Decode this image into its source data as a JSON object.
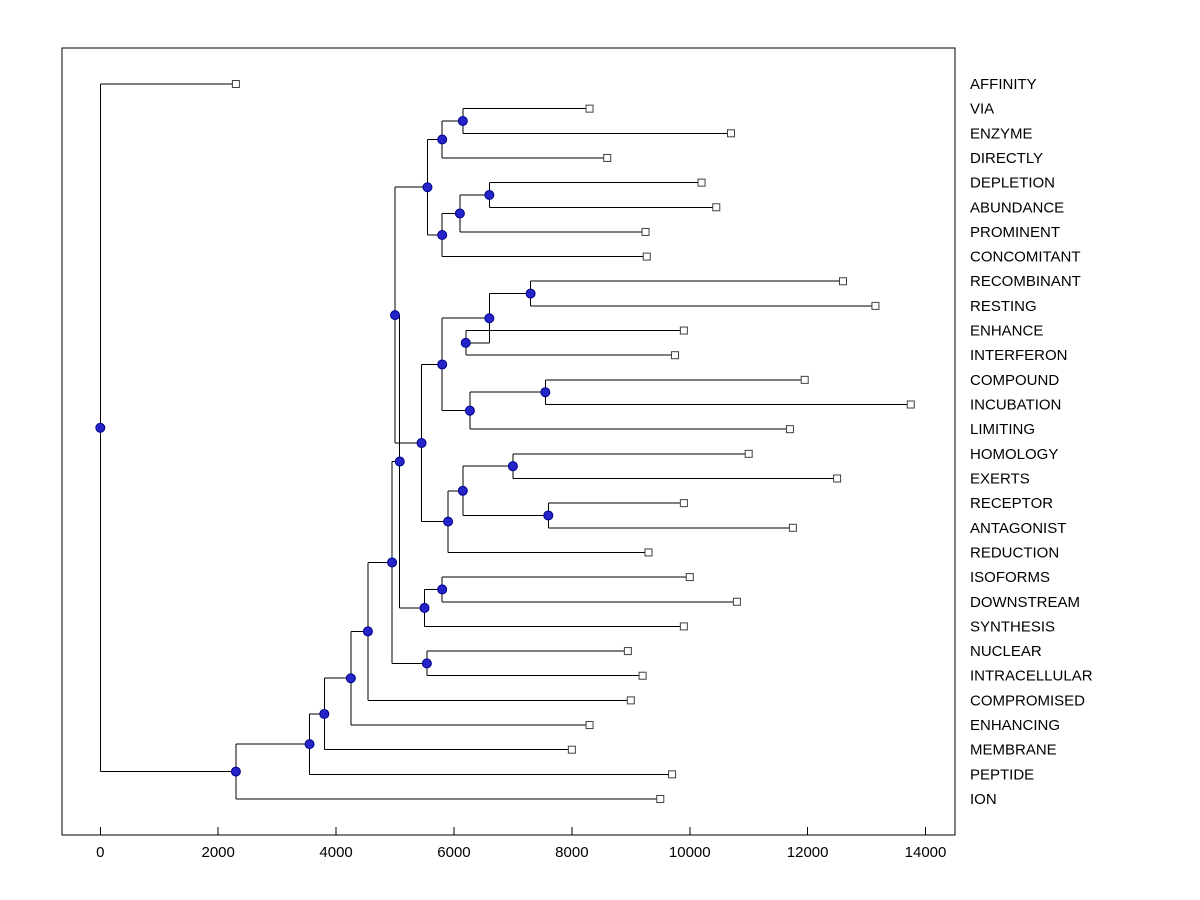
{
  "figure": {
    "background": "#ffffff"
  },
  "colors": {
    "line": "#000000",
    "leaf_marker_fill": "#ffffff",
    "leaf_marker_stroke": "#404040",
    "node_fill": "#2424c8",
    "node_stroke": "#00008b",
    "text": "#000000"
  },
  "chart_data": {
    "type": "dendrogram",
    "orientation": "left-to-right",
    "title": "",
    "xlabel": "",
    "ylabel": "",
    "grid": false,
    "xlim": [
      -650,
      14500
    ],
    "x_ticks": [
      0,
      2000,
      4000,
      6000,
      8000,
      10000,
      12000,
      14000
    ],
    "marker_styles": {
      "leaf": "open-square",
      "internal": "filled-circle"
    },
    "leaves": [
      {
        "label": "AFFINITY",
        "x": 2300
      },
      {
        "label": "VIA",
        "x": 8300
      },
      {
        "label": "ENZYME",
        "x": 10700
      },
      {
        "label": "DIRECTLY",
        "x": 8600
      },
      {
        "label": "DEPLETION",
        "x": 10200
      },
      {
        "label": "ABUNDANCE",
        "x": 10450
      },
      {
        "label": "PROMINENT",
        "x": 9250
      },
      {
        "label": "CONCOMITANT",
        "x": 9270
      },
      {
        "label": "RECOMBINANT",
        "x": 12600
      },
      {
        "label": "RESTING",
        "x": 13150
      },
      {
        "label": "ENHANCE",
        "x": 9900
      },
      {
        "label": "INTERFERON",
        "x": 9750
      },
      {
        "label": "COMPOUND",
        "x": 11950
      },
      {
        "label": "INCUBATION",
        "x": 13750
      },
      {
        "label": "LIMITING",
        "x": 11700
      },
      {
        "label": "HOMOLOGY",
        "x": 11000
      },
      {
        "label": "EXERTS",
        "x": 12500
      },
      {
        "label": "RECEPTOR",
        "x": 9900
      },
      {
        "label": "ANTAGONIST",
        "x": 11750
      },
      {
        "label": "REDUCTION",
        "x": 9300
      },
      {
        "label": "ISOFORMS",
        "x": 10000
      },
      {
        "label": "DOWNSTREAM",
        "x": 10800
      },
      {
        "label": "SYNTHESIS",
        "x": 9900
      },
      {
        "label": "NUCLEAR",
        "x": 8950
      },
      {
        "label": "INTRACELLULAR",
        "x": 9200
      },
      {
        "label": "COMPROMISED",
        "x": 9000
      },
      {
        "label": "ENHANCING",
        "x": 8300
      },
      {
        "label": "MEMBRANE",
        "x": 8000
      },
      {
        "label": "PEPTIDE",
        "x": 9700
      },
      {
        "label": "ION",
        "x": 9500
      }
    ],
    "internal_nodes": [
      {
        "id": "t1",
        "x": 6150,
        "children": [
          "VIA",
          "ENZYME"
        ]
      },
      {
        "id": "t2",
        "x": 5800,
        "children": [
          "t1",
          "DIRECTLY"
        ]
      },
      {
        "id": "t3",
        "x": 6600,
        "children": [
          "DEPLETION",
          "ABUNDANCE"
        ]
      },
      {
        "id": "t4",
        "x": 6100,
        "children": [
          "t3",
          "PROMINENT"
        ]
      },
      {
        "id": "t5",
        "x": 5800,
        "children": [
          "t4",
          "CONCOMITANT"
        ]
      },
      {
        "id": "t6",
        "x": 5550,
        "children": [
          "t2",
          "t5"
        ]
      },
      {
        "id": "m1",
        "x": 7300,
        "children": [
          "RECOMBINANT",
          "RESTING"
        ]
      },
      {
        "id": "m2",
        "x": 6200,
        "children": [
          "ENHANCE",
          "INTERFERON"
        ]
      },
      {
        "id": "m3",
        "x": 6600,
        "children": [
          "m1",
          "m2"
        ]
      },
      {
        "id": "m4",
        "x": 7550,
        "children": [
          "COMPOUND",
          "INCUBATION"
        ]
      },
      {
        "id": "m5",
        "x": 6270,
        "children": [
          "m4",
          "LIMITING"
        ]
      },
      {
        "id": "m6",
        "x": 5800,
        "children": [
          "m3",
          "m5"
        ]
      },
      {
        "id": "m7",
        "x": 7000,
        "children": [
          "HOMOLOGY",
          "EXERTS"
        ]
      },
      {
        "id": "m8",
        "x": 7600,
        "children": [
          "RECEPTOR",
          "ANTAGONIST"
        ]
      },
      {
        "id": "m9",
        "x": 6150,
        "children": [
          "m7",
          "m8"
        ]
      },
      {
        "id": "m10",
        "x": 5900,
        "children": [
          "m9",
          "REDUCTION"
        ]
      },
      {
        "id": "M1",
        "x": 5450,
        "children": [
          "m6",
          "m10"
        ]
      },
      {
        "id": "TM",
        "x": 5000,
        "children": [
          "t6",
          "M1"
        ]
      },
      {
        "id": "b1",
        "x": 5800,
        "children": [
          "ISOFORMS",
          "DOWNSTREAM"
        ]
      },
      {
        "id": "b2",
        "x": 5500,
        "children": [
          "b1",
          "SYNTHESIS"
        ]
      },
      {
        "id": "C1",
        "x": 5080,
        "children": [
          "TM",
          "b2"
        ]
      },
      {
        "id": "b4",
        "x": 5540,
        "children": [
          "NUCLEAR",
          "INTRACELLULAR"
        ]
      },
      {
        "id": "C2",
        "x": 4950,
        "children": [
          "C1",
          "b4"
        ]
      },
      {
        "id": "C3",
        "x": 4540,
        "children": [
          "C2",
          "COMPROMISED"
        ]
      },
      {
        "id": "C4",
        "x": 4250,
        "children": [
          "C3",
          "ENHANCING"
        ]
      },
      {
        "id": "C5",
        "x": 3800,
        "children": [
          "C4",
          "MEMBRANE"
        ]
      },
      {
        "id": "C6",
        "x": 3550,
        "children": [
          "C5",
          "PEPTIDE"
        ]
      },
      {
        "id": "C7",
        "x": 2300,
        "children": [
          "C6",
          "ION"
        ]
      },
      {
        "id": "ROOT",
        "x": 0,
        "children": [
          "AFFINITY",
          "C7"
        ]
      }
    ]
  }
}
